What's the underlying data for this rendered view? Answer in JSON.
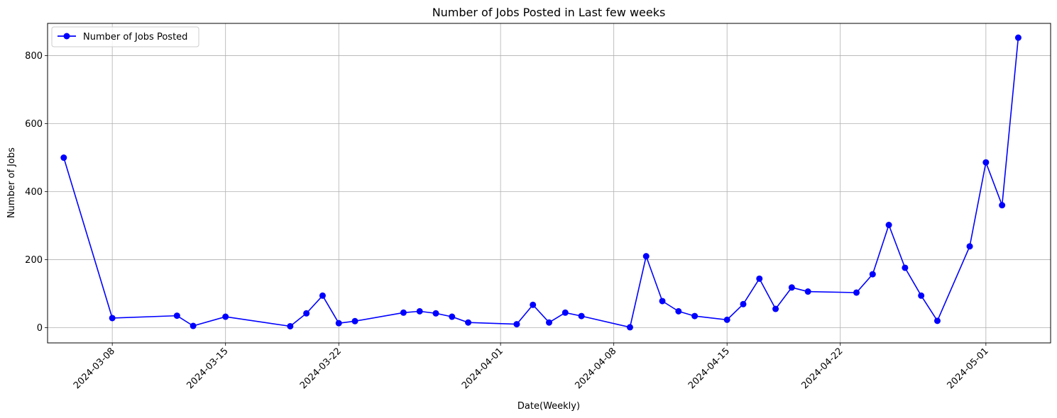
{
  "chart_data": {
    "type": "line",
    "title": "Number of Jobs Posted in Last few weeks",
    "xlabel": "Date(Weekly)",
    "ylabel": "Number of Jobs",
    "grid": true,
    "legend_position": "top-left",
    "colors": {
      "series": "#0000ff",
      "grid": "#b0b0b0"
    },
    "ylim": [
      -45,
      895
    ],
    "xlim": [
      "2024-03-04",
      "2024-05-05"
    ],
    "y_ticks": [
      0,
      200,
      400,
      600,
      800
    ],
    "x_ticks": [
      "2024-03-08",
      "2024-03-15",
      "2024-03-22",
      "2024-04-01",
      "2024-04-08",
      "2024-04-15",
      "2024-04-22",
      "2024-05-01"
    ],
    "series": [
      {
        "name": "Number of Jobs Posted",
        "x": [
          "2024-03-05",
          "2024-03-08",
          "2024-03-12",
          "2024-03-13",
          "2024-03-15",
          "2024-03-19",
          "2024-03-20",
          "2024-03-21",
          "2024-03-22",
          "2024-03-23",
          "2024-03-26",
          "2024-03-27",
          "2024-03-28",
          "2024-03-29",
          "2024-03-30",
          "2024-04-02",
          "2024-04-03",
          "2024-04-04",
          "2024-04-05",
          "2024-04-06",
          "2024-04-09",
          "2024-04-10",
          "2024-04-11",
          "2024-04-12",
          "2024-04-13",
          "2024-04-15",
          "2024-04-16",
          "2024-04-17",
          "2024-04-18",
          "2024-04-19",
          "2024-04-20",
          "2024-04-23",
          "2024-04-24",
          "2024-04-25",
          "2024-04-26",
          "2024-04-27",
          "2024-04-28",
          "2024-04-30",
          "2024-05-01",
          "2024-05-02",
          "2024-05-03"
        ],
        "values": [
          500,
          28,
          35,
          5,
          32,
          4,
          42,
          94,
          13,
          19,
          44,
          48,
          42,
          32,
          15,
          10,
          67,
          15,
          44,
          34,
          1,
          210,
          78,
          48,
          34,
          23,
          69,
          144,
          55,
          118,
          106,
          103,
          157,
          302,
          176,
          94,
          20,
          239,
          486,
          360,
          853
        ]
      }
    ]
  }
}
